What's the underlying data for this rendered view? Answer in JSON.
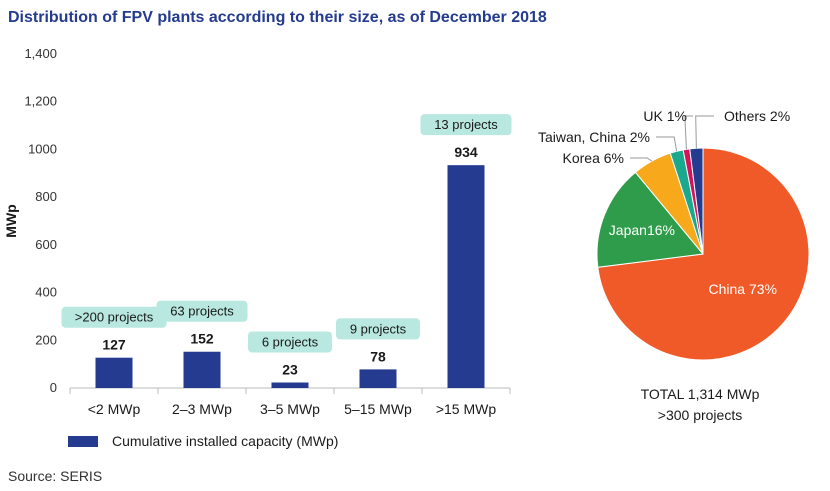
{
  "title": "Distribution of FPV plants according to their size, as of December 2018",
  "source": "Source: SERIS",
  "colors": {
    "bar": "#243b8f",
    "badge": "#b8e8df",
    "pie": [
      "#f05a28",
      "#2e9c4a",
      "#f7a81b",
      "#1aa98c",
      "#d4145a",
      "#243b8f"
    ],
    "title": "#243b8f"
  },
  "chart_data": [
    {
      "type": "bar",
      "categories": [
        "<2 MWp",
        "2–3 MWp",
        "3–5 MWp",
        "5–15 MWp",
        ">15 MWp"
      ],
      "values": [
        127,
        152,
        23,
        78,
        934
      ],
      "annotations": [
        ">200 projects",
        "63 projects",
        "6 projects",
        "9 projects",
        "13 projects"
      ],
      "ylabel": "MWp",
      "ylim": [
        0,
        1400
      ],
      "yticks": [
        "0",
        "200",
        "400",
        "600",
        "800",
        "1000",
        "1,200",
        "1,400"
      ],
      "legend": "Cumulative installed capacity (MWp)",
      "legend_position": "bottom-left",
      "grid": false
    },
    {
      "type": "pie",
      "slices": [
        {
          "label": "China 73%",
          "value": 73
        },
        {
          "label": "Japan16%",
          "value": 16
        },
        {
          "label": "Korea 6%",
          "value": 6
        },
        {
          "label": "Taiwan, China 2%",
          "value": 2
        },
        {
          "label": "UK 1%",
          "value": 1
        },
        {
          "label": "Others 2%",
          "value": 2
        }
      ],
      "total_line1": "TOTAL 1,314 MWp",
      "total_line2": ">300 projects"
    }
  ]
}
